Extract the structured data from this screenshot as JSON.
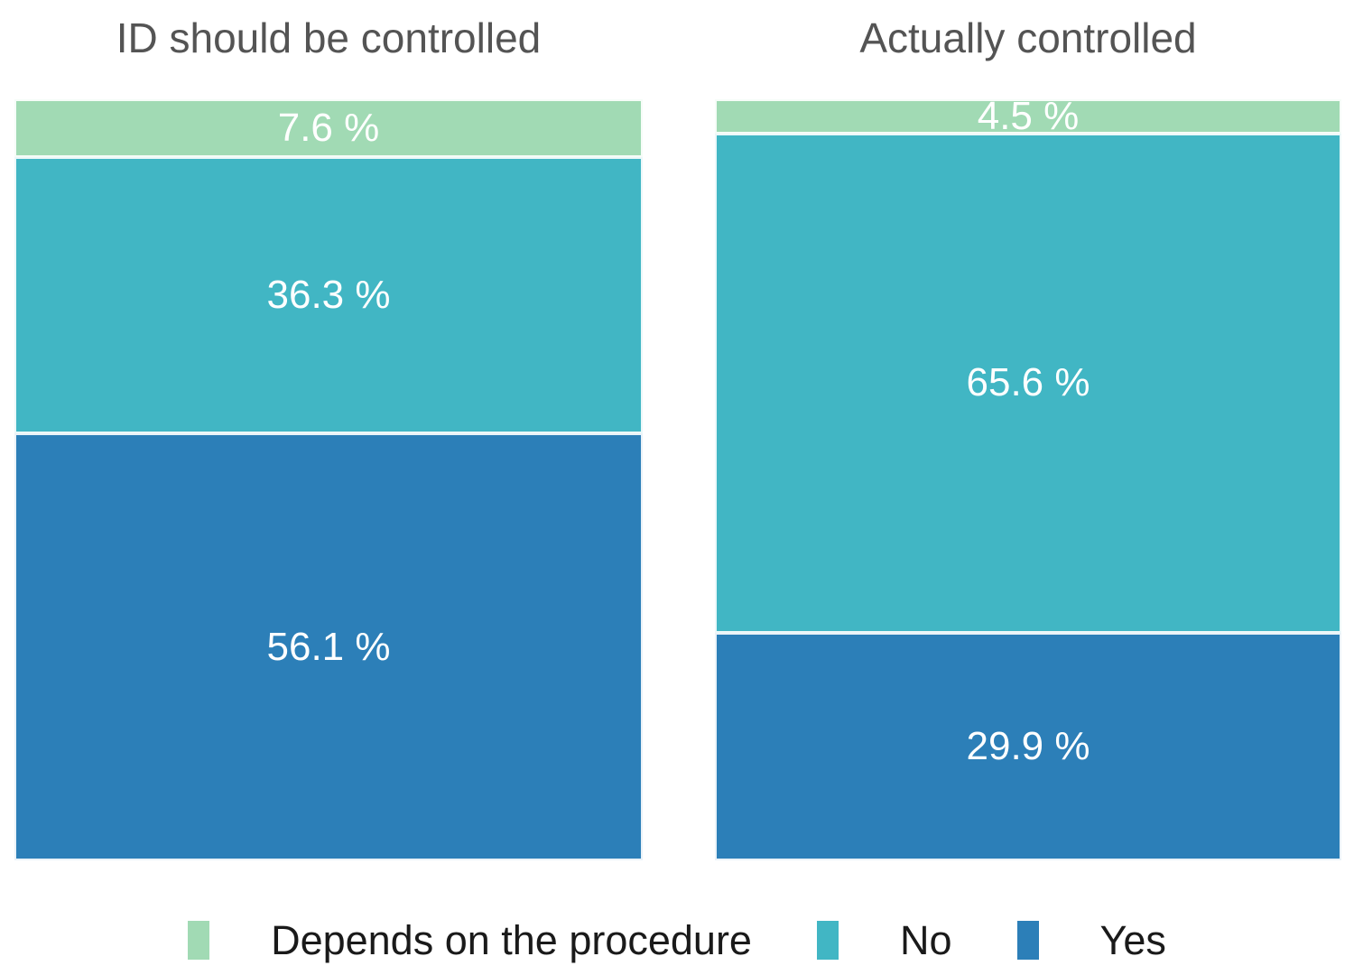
{
  "chart_data": {
    "type": "bar",
    "variant": "stacked-100-percent",
    "orientation": "vertical",
    "categories": [
      "ID should be controlled",
      "Actually controlled"
    ],
    "series": [
      {
        "name": "Depends on the procedure",
        "color": "#a1dab4",
        "values": [
          7.6,
          4.5
        ]
      },
      {
        "name": "No",
        "color": "#41b6c4",
        "values": [
          36.3,
          65.6
        ]
      },
      {
        "name": "Yes",
        "color": "#2c7fb8",
        "values": [
          56.1,
          29.9
        ]
      }
    ],
    "stack_order_top_to_bottom": [
      "Depends on the procedure",
      "No",
      "Yes"
    ],
    "value_labels": [
      [
        "7.6 %",
        "36.3 %",
        "56.1 %"
      ],
      [
        "4.5 %",
        "65.6 %",
        "29.9 %"
      ]
    ],
    "ylim": [
      0,
      100
    ],
    "grid": false,
    "axes_shown": false,
    "legend_position": "bottom"
  },
  "style": {
    "background": "#ffffff",
    "title_text_color": "#545454",
    "value_label_color": "#ffffff",
    "legend_text_color": "#1a1a1a",
    "segment_separator_color": "#ffffff"
  }
}
